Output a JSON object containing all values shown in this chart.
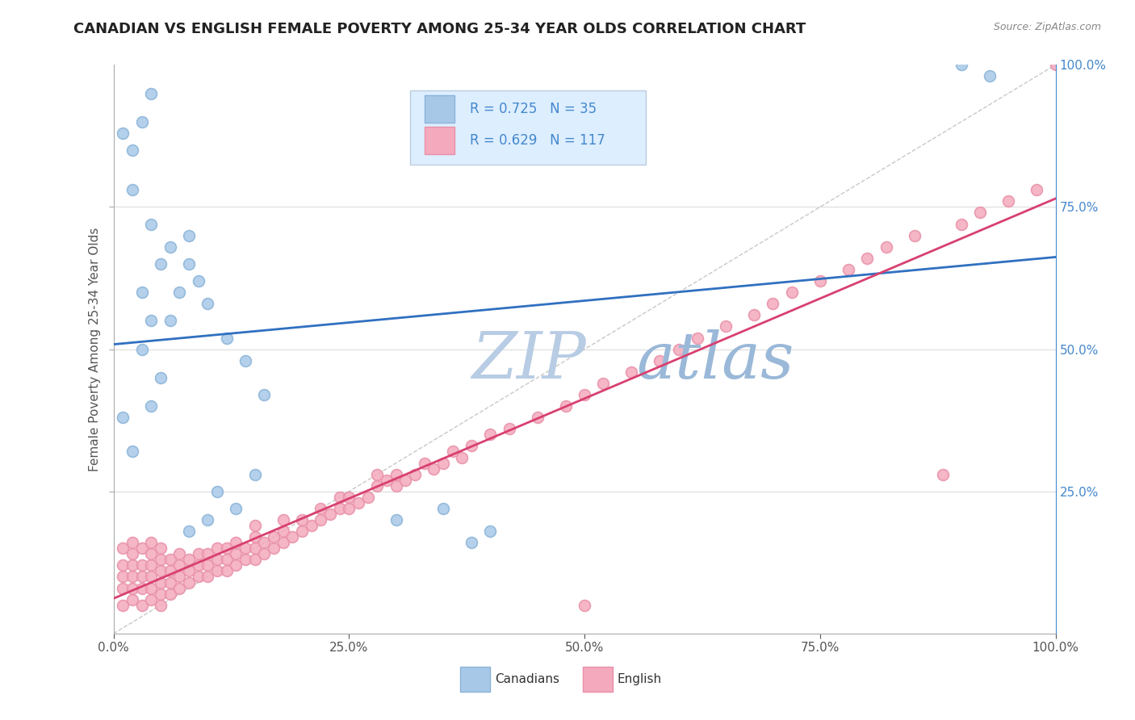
{
  "title": "CANADIAN VS ENGLISH FEMALE POVERTY AMONG 25-34 YEAR OLDS CORRELATION CHART",
  "source": "Source: ZipAtlas.com",
  "ylabel": "Female Poverty Among 25-34 Year Olds",
  "xlim": [
    0.0,
    1.0
  ],
  "ylim": [
    0.0,
    1.0
  ],
  "xtick_labels": [
    "0.0%",
    "25.0%",
    "50.0%",
    "75.0%",
    "100.0%"
  ],
  "xtick_vals": [
    0.0,
    0.25,
    0.5,
    0.75,
    1.0
  ],
  "right_ytick_labels": [
    "100.0%",
    "75.0%",
    "50.0%",
    "25.0%"
  ],
  "right_ytick_vals": [
    1.0,
    0.75,
    0.5,
    0.25
  ],
  "canadian_R": 0.725,
  "canadian_N": 35,
  "english_R": 0.629,
  "english_N": 117,
  "canadian_color": "#a8c8e8",
  "english_color": "#f4aabc",
  "canadian_edge_color": "#8ab4d8",
  "english_edge_color": "#e890a8",
  "canadian_line_color": "#3070c0",
  "english_line_color": "#d84070",
  "background_color": "#ffffff",
  "grid_color": "#dddddd",
  "watermark_color": "#b8cce4",
  "watermark_color2": "#9ab8d8",
  "title_color": "#222222",
  "source_color": "#888888",
  "right_axis_color": "#4488cc",
  "legend_bg": "#ddeeff",
  "legend_border": "#bbccdd",
  "canadian_x": [
    0.02,
    0.01,
    0.05,
    0.04,
    0.03,
    0.03,
    0.04,
    0.05,
    0.06,
    0.08,
    0.04,
    0.02,
    0.02,
    0.03,
    0.04,
    0.01,
    0.06,
    0.07,
    0.08,
    0.09,
    0.1,
    0.12,
    0.14,
    0.16,
    0.08,
    0.1,
    0.13,
    0.11,
    0.15,
    0.3,
    0.35,
    0.38,
    0.4,
    0.9,
    0.93
  ],
  "canadian_y": [
    0.32,
    0.38,
    0.45,
    0.4,
    0.5,
    0.6,
    0.55,
    0.65,
    0.68,
    0.7,
    0.72,
    0.78,
    0.85,
    0.9,
    0.95,
    0.88,
    0.55,
    0.6,
    0.65,
    0.62,
    0.58,
    0.52,
    0.48,
    0.42,
    0.18,
    0.2,
    0.22,
    0.25,
    0.28,
    0.2,
    0.22,
    0.16,
    0.18,
    1.0,
    0.98
  ],
  "english_x": [
    0.01,
    0.01,
    0.01,
    0.01,
    0.01,
    0.02,
    0.02,
    0.02,
    0.02,
    0.02,
    0.02,
    0.03,
    0.03,
    0.03,
    0.03,
    0.03,
    0.04,
    0.04,
    0.04,
    0.04,
    0.04,
    0.04,
    0.05,
    0.05,
    0.05,
    0.05,
    0.05,
    0.05,
    0.06,
    0.06,
    0.06,
    0.06,
    0.07,
    0.07,
    0.07,
    0.07,
    0.08,
    0.08,
    0.08,
    0.09,
    0.09,
    0.09,
    0.1,
    0.1,
    0.1,
    0.11,
    0.11,
    0.11,
    0.12,
    0.12,
    0.12,
    0.13,
    0.13,
    0.13,
    0.14,
    0.14,
    0.15,
    0.15,
    0.15,
    0.15,
    0.16,
    0.16,
    0.17,
    0.17,
    0.18,
    0.18,
    0.18,
    0.19,
    0.2,
    0.2,
    0.21,
    0.22,
    0.22,
    0.23,
    0.24,
    0.24,
    0.25,
    0.25,
    0.26,
    0.27,
    0.28,
    0.28,
    0.29,
    0.3,
    0.3,
    0.31,
    0.32,
    0.33,
    0.34,
    0.35,
    0.36,
    0.37,
    0.38,
    0.4,
    0.42,
    0.45,
    0.48,
    0.5,
    0.5,
    0.52,
    0.55,
    0.58,
    0.6,
    0.62,
    0.65,
    0.68,
    0.7,
    0.72,
    0.75,
    0.78,
    0.8,
    0.82,
    0.85,
    0.88,
    0.9,
    0.92,
    0.95,
    0.98,
    1.0
  ],
  "english_y": [
    0.05,
    0.08,
    0.1,
    0.12,
    0.15,
    0.06,
    0.08,
    0.1,
    0.12,
    0.14,
    0.16,
    0.05,
    0.08,
    0.1,
    0.12,
    0.15,
    0.06,
    0.08,
    0.1,
    0.12,
    0.14,
    0.16,
    0.05,
    0.07,
    0.09,
    0.11,
    0.13,
    0.15,
    0.07,
    0.09,
    0.11,
    0.13,
    0.08,
    0.1,
    0.12,
    0.14,
    0.09,
    0.11,
    0.13,
    0.1,
    0.12,
    0.14,
    0.1,
    0.12,
    0.14,
    0.11,
    0.13,
    0.15,
    0.11,
    0.13,
    0.15,
    0.12,
    0.14,
    0.16,
    0.13,
    0.15,
    0.13,
    0.15,
    0.17,
    0.19,
    0.14,
    0.16,
    0.15,
    0.17,
    0.16,
    0.18,
    0.2,
    0.17,
    0.18,
    0.2,
    0.19,
    0.2,
    0.22,
    0.21,
    0.22,
    0.24,
    0.22,
    0.24,
    0.23,
    0.24,
    0.26,
    0.28,
    0.27,
    0.26,
    0.28,
    0.27,
    0.28,
    0.3,
    0.29,
    0.3,
    0.32,
    0.31,
    0.33,
    0.35,
    0.36,
    0.38,
    0.4,
    0.42,
    0.05,
    0.44,
    0.46,
    0.48,
    0.5,
    0.52,
    0.54,
    0.56,
    0.58,
    0.6,
    0.62,
    0.64,
    0.66,
    0.68,
    0.7,
    0.28,
    0.72,
    0.74,
    0.76,
    0.78,
    1.0
  ],
  "ref_line_color": "#bbbbbb",
  "title_fontsize": 13,
  "tick_fontsize": 11,
  "dot_size": 100,
  "line_width": 2.0
}
